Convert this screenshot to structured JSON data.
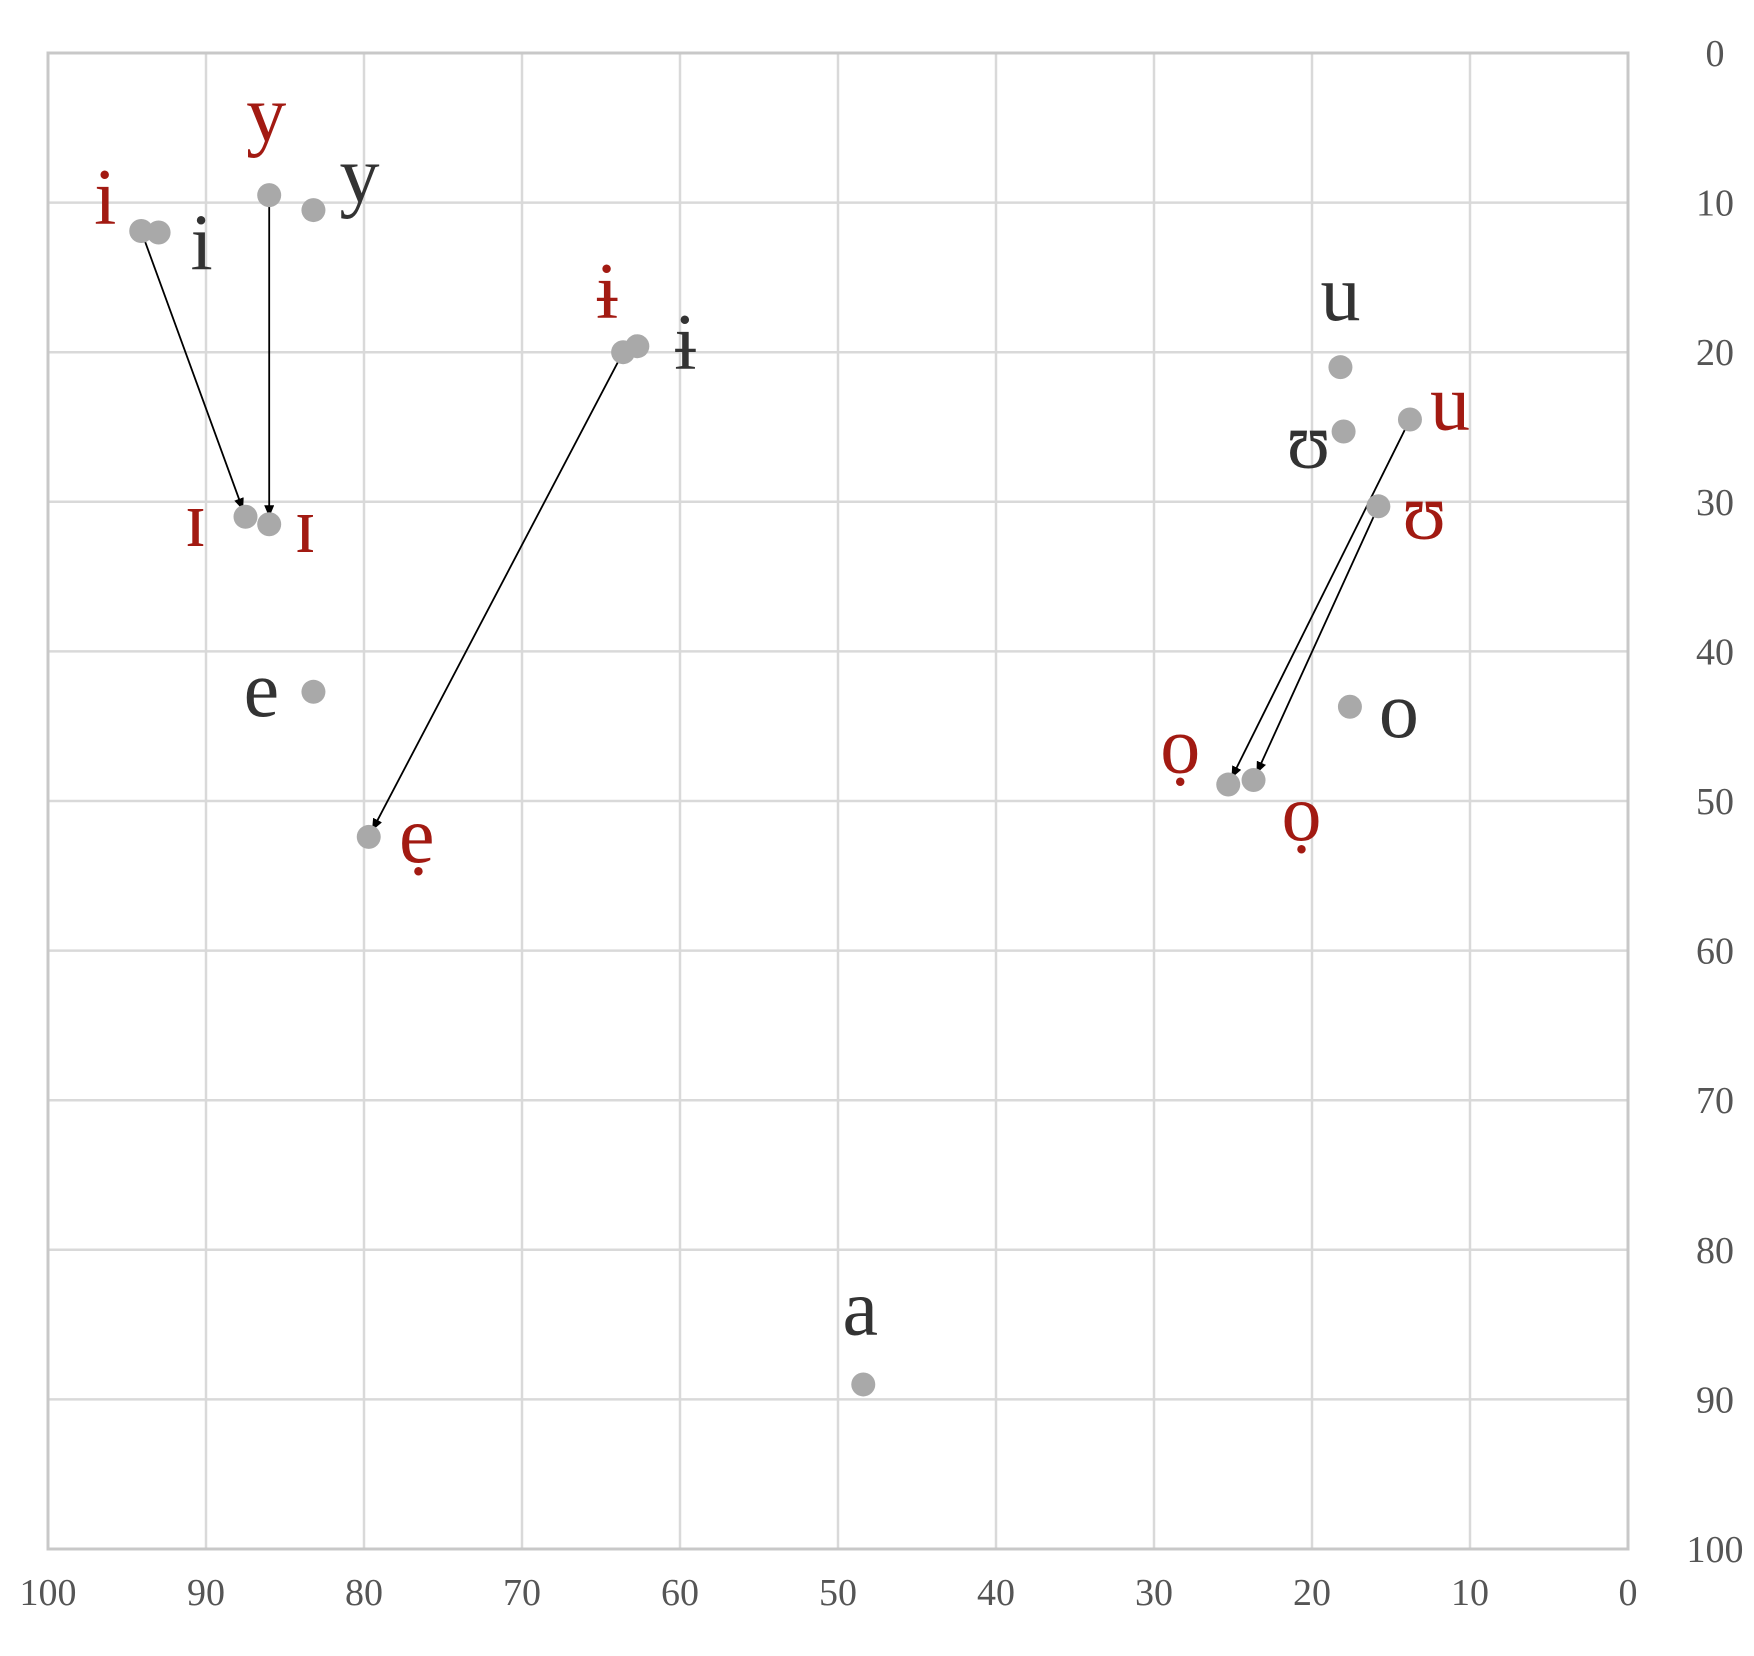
{
  "chart_data": {
    "type": "scatter",
    "x_axis": {
      "range": [
        100,
        0
      ],
      "ticks": [
        100,
        90,
        80,
        70,
        60,
        50,
        40,
        30,
        20,
        10,
        0
      ]
    },
    "y_axis": {
      "range": [
        0,
        100
      ],
      "reversed": true,
      "position": "right",
      "ticks": [
        0,
        10,
        20,
        30,
        40,
        50,
        60,
        70,
        80,
        90,
        100
      ]
    },
    "grid": true,
    "colors": {
      "grid": "#d9d9d9",
      "point": "#a9a9a9",
      "label_black": "#333333",
      "label_red": "#a21a12",
      "arrow": "#000000"
    },
    "points": [
      {
        "x": 93.0,
        "y": 12.0,
        "label": "i",
        "color": "#333333"
      },
      {
        "x": 83.2,
        "y": 10.5,
        "label": "y",
        "color": "#333333"
      },
      {
        "x": 62.7,
        "y": 19.6,
        "label": "ɨ",
        "color": "#333333"
      },
      {
        "x": 83.2,
        "y": 42.7,
        "label": "e",
        "color": "#333333"
      },
      {
        "x": 18.2,
        "y": 21.0,
        "label": "u",
        "color": "#333333"
      },
      {
        "x": 18.0,
        "y": 25.3,
        "label": "ʊ",
        "color": "#333333"
      },
      {
        "x": 17.6,
        "y": 43.7,
        "label": "o",
        "color": "#333333"
      },
      {
        "x": 48.4,
        "y": 89.0,
        "label": "a",
        "color": "#333333"
      },
      {
        "x": 94.1,
        "y": 11.9,
        "label": "i",
        "color": "#a21a12"
      },
      {
        "x": 86.0,
        "y": 9.5,
        "label": "y",
        "color": "#a21a12"
      },
      {
        "x": 63.6,
        "y": 20.0,
        "label": "ɨ",
        "color": "#a21a12"
      },
      {
        "x": 13.8,
        "y": 24.5,
        "label": "u",
        "color": "#a21a12"
      },
      {
        "x": 15.8,
        "y": 30.3,
        "label": "ʊ",
        "color": "#a21a12"
      },
      {
        "x": 87.5,
        "y": 31.0,
        "label": "ɪ",
        "color": "#a21a12"
      },
      {
        "x": 86.0,
        "y": 31.5,
        "label": "ɪ",
        "color": "#a21a12"
      },
      {
        "x": 79.7,
        "y": 52.4,
        "label": "ẹ",
        "color": "#a21a12"
      },
      {
        "x": 25.3,
        "y": 48.9,
        "label": "ọ",
        "color": "#a21a12"
      },
      {
        "x": 23.7,
        "y": 48.6,
        "label": "ọ",
        "color": "#a21a12"
      }
    ],
    "arrows": [
      {
        "from": [
          94.1,
          11.9
        ],
        "to": [
          87.5,
          31.0
        ]
      },
      {
        "from": [
          86.0,
          9.5
        ],
        "to": [
          86.0,
          31.5
        ]
      },
      {
        "from": [
          63.6,
          20.0
        ],
        "to": [
          79.7,
          52.4
        ]
      },
      {
        "from": [
          13.8,
          24.5
        ],
        "to": [
          25.3,
          48.9
        ]
      },
      {
        "from": [
          15.8,
          30.3
        ],
        "to": [
          23.7,
          48.6
        ]
      }
    ]
  }
}
